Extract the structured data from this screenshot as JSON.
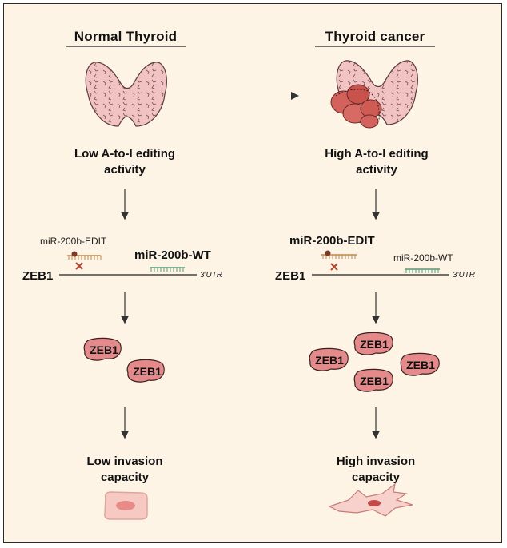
{
  "left": {
    "title": "Normal Thyroid",
    "editing_line1": "Low A-to-I editing",
    "editing_line2": "activity",
    "mir_edit": "miR-200b-EDIT",
    "mir_wt": "miR-200b-WT",
    "gene": "ZEB1",
    "utr": "3'UTR",
    "protein": "ZEB1",
    "invasion_line1": "Low invasion",
    "invasion_line2": "capacity"
  },
  "right": {
    "title": "Thyroid cancer",
    "editing_line1": "High A-to-I editing",
    "editing_line2": "activity",
    "mir_edit": "miR-200b-EDIT",
    "mir_wt": "miR-200b-WT",
    "gene": "ZEB1",
    "utr": "3'UTR",
    "protein": "ZEB1",
    "invasion_line1": "High invasion",
    "invasion_line2": "capacity"
  },
  "colors": {
    "background": "#fdf4e6",
    "thyroid": "#f2c3c3",
    "tumor": "#d4625c",
    "protein": "#e58a8a",
    "edit_mirna": "#c0894a",
    "wt_mirna": "#5a9a78",
    "inhibit_mark": "#b5432c"
  }
}
